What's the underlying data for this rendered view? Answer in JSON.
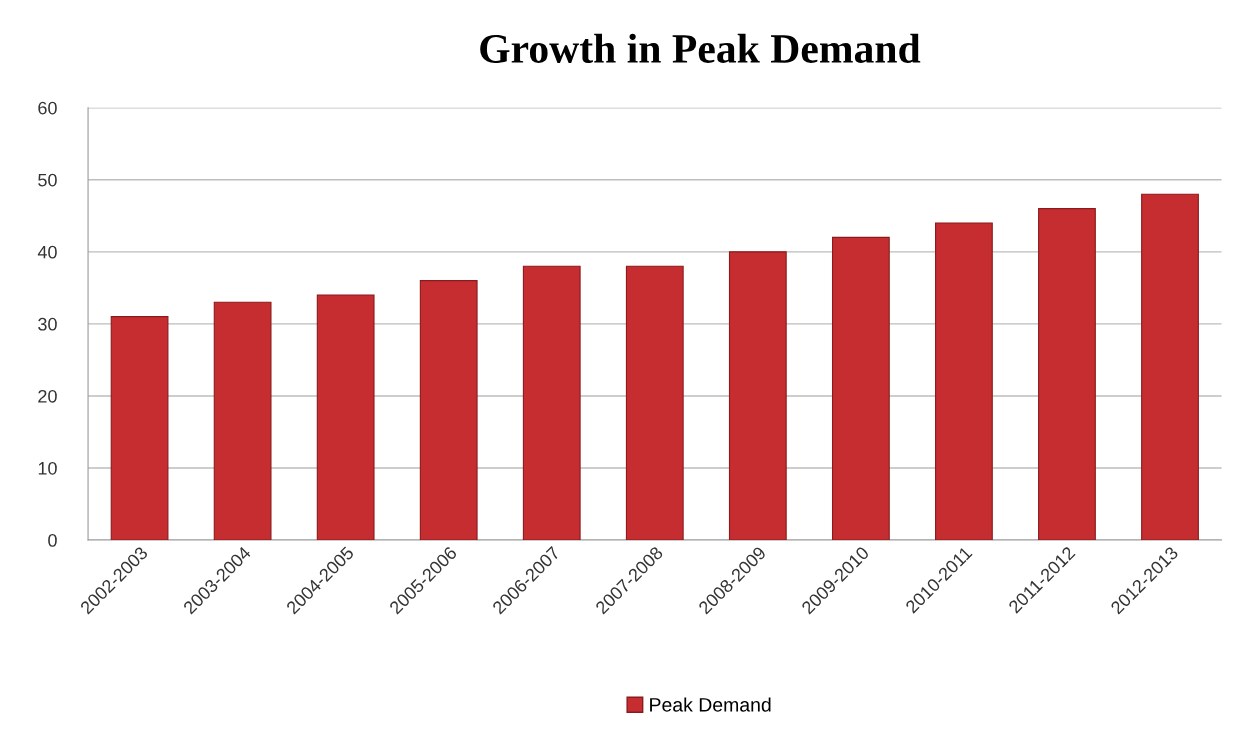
{
  "chart_data": {
    "type": "bar",
    "title": "Growth in Peak Demand",
    "categories": [
      "2002-2003",
      "2003-2004",
      "2004-2005",
      "2005-2006",
      "2006-2007",
      "2007-2008",
      "2008-2009",
      "2009-2010",
      "2010-2011",
      "2011-2012",
      "2012-2013"
    ],
    "series": [
      {
        "name": "Peak Demand",
        "color": "#c62d30",
        "values": [
          31,
          33,
          34,
          36,
          38,
          38,
          40,
          42,
          44,
          46,
          48
        ]
      }
    ],
    "ylim": [
      0,
      60
    ],
    "yticks": [
      0,
      10,
      20,
      30,
      40,
      50,
      60
    ],
    "grid": "y",
    "legend": "bottom"
  }
}
